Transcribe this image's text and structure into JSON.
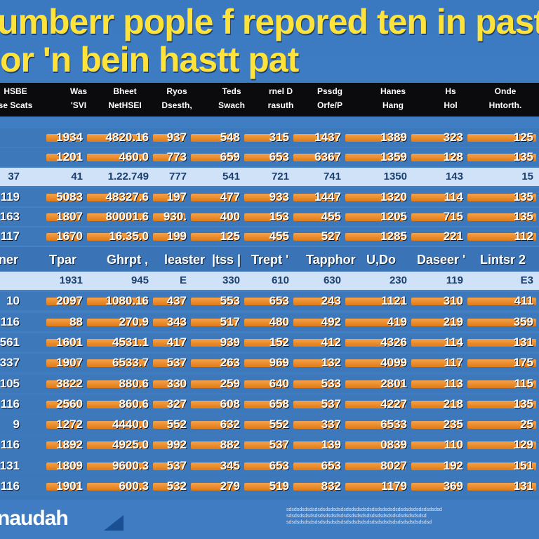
{
  "title": {
    "line1": "umberr pople f repored ten in past",
    "line2": "or 'n bein hastt  pat"
  },
  "header": {
    "columns": [
      {
        "line1": "HSBE",
        "line2": "se Scats"
      },
      {
        "line1": "Was",
        "line2": "'SVI"
      },
      {
        "line1": "Bheet",
        "line2": "NetHSEI"
      },
      {
        "line1": "Ryos",
        "line2": "Dsesth,"
      },
      {
        "line1": "Teds",
        "line2": "Swach"
      },
      {
        "line1": "rnel D",
        "line2": "rasuth"
      },
      {
        "line1": "Pssdg",
        "line2": "Orfe/P"
      },
      {
        "line1": "Hanes",
        "line2": "Hang"
      },
      {
        "line1": "Hs",
        "line2": "Hol"
      },
      {
        "line1": "Onde",
        "line2": "Hntorth."
      }
    ]
  },
  "mid_header": [
    "ner",
    "Tpar",
    "Ghrpt ,",
    "leaster",
    "|tss |",
    "Trept '",
    "Tapphor",
    "U,Do",
    "Daseer '",
    "Lintsr 2"
  ],
  "chart_data": {
    "type": "table",
    "title": "umberr pople f repored ten in past or 'n bein hastt  pat",
    "column_groups": [
      "HSBE",
      "Was",
      "Bheet",
      "Ryos",
      "Teds",
      "rnel D",
      "Pssdg",
      "Hanes",
      "Hs",
      "Onde"
    ],
    "rows_top": [
      {
        "label": "",
        "values": [
          "1934",
          "4820.16",
          "937",
          "548",
          "315",
          "1437",
          "1389",
          "323",
          "125"
        ],
        "style": "dark"
      },
      {
        "label": "",
        "values": [
          "1201",
          "460.0",
          "773",
          "659",
          "653",
          "6367",
          "1359",
          "128",
          "135"
        ],
        "style": "dark"
      },
      {
        "label": "37",
        "values": [
          "41",
          "1.22.749",
          "777",
          "541",
          "721",
          "741",
          "1350",
          "143",
          "15"
        ],
        "style": "light"
      },
      {
        "label": "119",
        "values": [
          "5083",
          "48327.6",
          "197",
          "477",
          "933",
          "1447",
          "1320",
          "114",
          "135"
        ],
        "style": "dark"
      },
      {
        "label": "163",
        "values": [
          "1807",
          "80001.6",
          "930.",
          "400",
          "153",
          "455",
          "1205",
          "715",
          "135"
        ],
        "style": "dark"
      },
      {
        "label": "117",
        "values": [
          "1670",
          "16.35.0",
          "199",
          "125",
          "455",
          "527",
          "1285",
          "221",
          "112"
        ],
        "style": "dark"
      }
    ],
    "rows_bottom": [
      {
        "label": "",
        "values": [
          "1931",
          "945",
          "E",
          "330",
          "610",
          "630",
          "230",
          "119",
          "E3"
        ],
        "style": "light"
      },
      {
        "label": "10",
        "values": [
          "2097",
          "1080.16",
          "437",
          "553",
          "653",
          "243",
          "1121",
          "310",
          "411"
        ],
        "style": "dark"
      },
      {
        "label": "116",
        "values": [
          "88",
          "270.9",
          "343",
          "517",
          "480",
          "492",
          "419",
          "219",
          "359"
        ],
        "style": "dark"
      },
      {
        "label": "561",
        "values": [
          "1601",
          "4531.1",
          "417",
          "939",
          "152",
          "412",
          "4326",
          "114",
          "131"
        ],
        "style": "dark"
      },
      {
        "label": "337",
        "values": [
          "1907",
          "6533.7",
          "537",
          "263",
          "969",
          "132",
          "4099",
          "117",
          "175"
        ],
        "style": "dark"
      },
      {
        "label": "105",
        "values": [
          "3822",
          "880.6",
          "330",
          "259",
          "640",
          "533",
          "2801",
          "113",
          "115"
        ],
        "style": "dark"
      },
      {
        "label": "116",
        "values": [
          "2560",
          "860.6",
          "327",
          "608",
          "658",
          "537",
          "4227",
          "218",
          "135"
        ],
        "style": "dark"
      },
      {
        "label": "9",
        "values": [
          "1272",
          "4440.0",
          "552",
          "632",
          "552",
          "337",
          "6533",
          "235",
          "25"
        ],
        "style": "dark"
      },
      {
        "label": "116",
        "values": [
          "1892",
          "4925.0",
          "992",
          "882",
          "537",
          "139",
          "0839",
          "110",
          "129"
        ],
        "style": "dark"
      },
      {
        "label": "131",
        "values": [
          "1809",
          "9600.3",
          "537",
          "345",
          "653",
          "653",
          "8027",
          "192",
          "151"
        ],
        "style": "dark"
      },
      {
        "label": "116",
        "values": [
          "1901",
          "600.3",
          "532",
          "279",
          "519",
          "832",
          "1179",
          "369",
          "131"
        ],
        "style": "dark"
      }
    ]
  },
  "footer": {
    "logo": "naudah",
    "fine_print": "sdsdsdsdsdsdsdsdsdsdsdsdsdsdsdsdsdsdsdsdsdsdsdsdsdsdsdsdsdsd sdsdsdsdsdsdsdsdsdsdsdsdsdsdsdsdsdsdsdsdsdsdsdsdsdsdsd sdsdsdsdsdsdsdsdsdsdsdsdsdsdsdsdsdsdsdsdsdsdsdsdsdsdsdsd"
  },
  "colors": {
    "background": "#3f7cc1",
    "title": "#ffe23a",
    "header_band": "#0b0b0d",
    "bar": "#e88b2a",
    "light_row": "#cfe2f7"
  }
}
